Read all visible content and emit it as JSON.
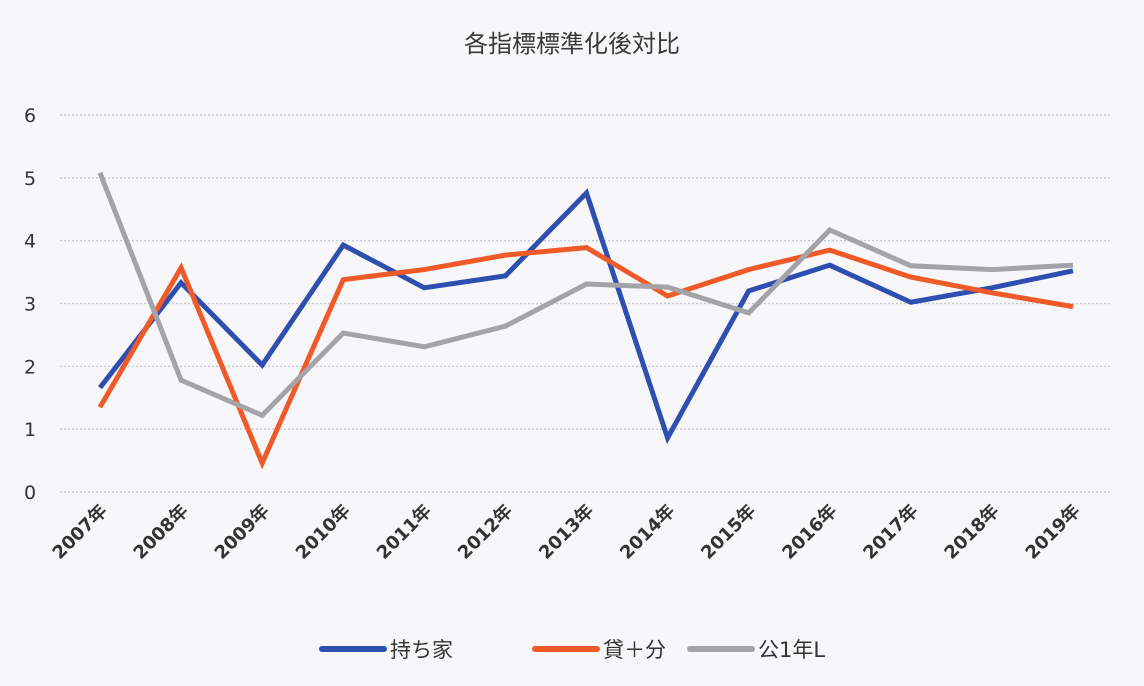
{
  "chart_data": {
    "type": "line",
    "title": "各指標標準化後対比",
    "xlabel": "",
    "ylabel": "",
    "ylim": [
      0,
      6
    ],
    "yticks": [
      "0",
      "1",
      "2",
      "3",
      "4",
      "5",
      "6"
    ],
    "grid": true,
    "legend_position": "bottom",
    "categories": [
      "2007年",
      "2008年",
      "2009年",
      "2010年",
      "2011年",
      "2012年",
      "2013年",
      "2014年",
      "2015年",
      "2016年",
      "2017年",
      "2018年",
      "2019年"
    ],
    "series": [
      {
        "name": "持ち家",
        "color": "#2e4fb0",
        "values": [
          1.66,
          3.33,
          2.02,
          3.93,
          3.25,
          3.44,
          4.76,
          0.86,
          3.2,
          3.61,
          3.02,
          3.25,
          3.52
        ]
      },
      {
        "name": "貸＋分",
        "color": "#f05a28",
        "values": [
          1.35,
          3.57,
          0.46,
          3.38,
          3.54,
          3.77,
          3.89,
          3.12,
          3.54,
          3.85,
          3.42,
          3.17,
          2.95
        ]
      },
      {
        "name": "公1年L",
        "color": "#a3a3a8",
        "values": [
          5.08,
          1.78,
          1.22,
          2.53,
          2.31,
          2.64,
          3.31,
          3.26,
          2.85,
          4.17,
          3.6,
          3.54,
          3.61
        ]
      }
    ]
  }
}
